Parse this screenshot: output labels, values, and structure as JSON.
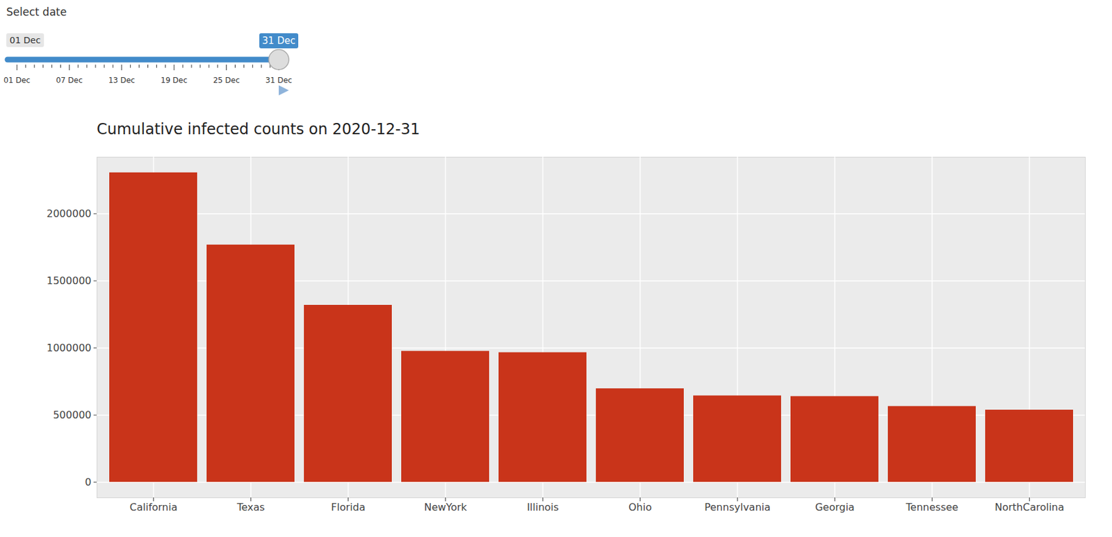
{
  "chart_data": {
    "type": "bar",
    "title": "Cumulative infected counts on 2020-12-31",
    "categories": [
      "California",
      "Texas",
      "Florida",
      "NewYork",
      "Illinois",
      "Ohio",
      "Pennsylvania",
      "Georgia",
      "Tennessee",
      "NorthCarolina"
    ],
    "values": [
      2306000,
      1768000,
      1319000,
      976000,
      966000,
      697000,
      644000,
      639000,
      565000,
      538000
    ],
    "color": "#C9341A",
    "ylim": [
      -116000,
      2422000
    ],
    "yticks": [
      0,
      500000,
      1000000,
      1500000,
      2000000
    ],
    "grid": true
  },
  "slider": {
    "label": "Select date",
    "from": "01 Dec",
    "to": "31 Dec",
    "ticks": [
      "01 Dec",
      "07 Dec",
      "13 Dec",
      "19 Dec",
      "25 Dec",
      "31 Dec"
    ]
  }
}
